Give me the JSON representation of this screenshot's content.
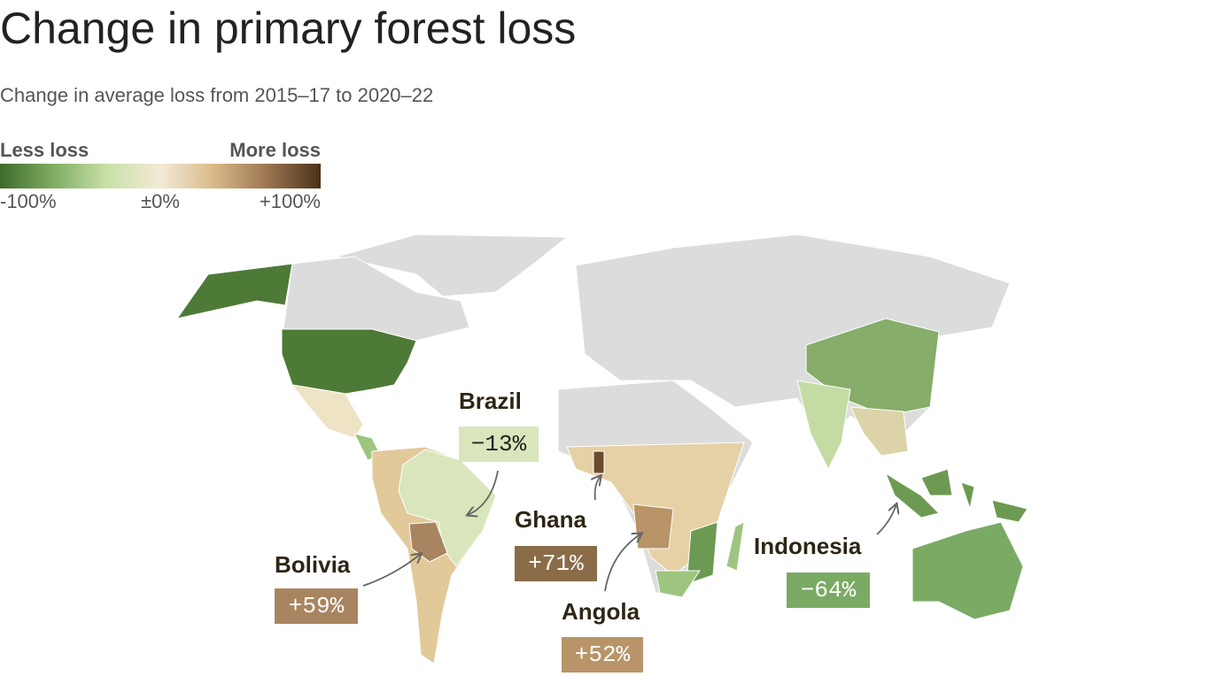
{
  "header": {
    "title": "Change in primary forest loss",
    "subtitle": "Change in average loss from 2015–17 to 2020–22"
  },
  "legend": {
    "low_label": "Less loss",
    "high_label": "More loss",
    "colors": [
      "#3e6b2a",
      "#7fad62",
      "#c9e0a8",
      "#f3ead6",
      "#d9b98a",
      "#9c7650",
      "#4a3018"
    ],
    "range": [
      -100,
      100
    ],
    "ticks": [
      {
        "value": -100,
        "label": "-100%"
      },
      {
        "value": 0,
        "label": "±0%"
      },
      {
        "value": 100,
        "label": "+100%"
      }
    ]
  },
  "map": {
    "annotations": [
      {
        "name": "Brazil",
        "value": -13,
        "label": "−13%",
        "color": "#d9e6bc"
      },
      {
        "name": "Ghana",
        "value": 71,
        "label": "+71%",
        "color": "#8b6c49"
      },
      {
        "name": "Bolivia",
        "value": 59,
        "label": "+59%",
        "color": "#a88560"
      },
      {
        "name": "Indonesia",
        "value": -64,
        "label": "−64%",
        "color": "#7aab64"
      },
      {
        "name": "Angola",
        "value": 52,
        "label": "+52%",
        "color": "#b89468"
      }
    ]
  }
}
